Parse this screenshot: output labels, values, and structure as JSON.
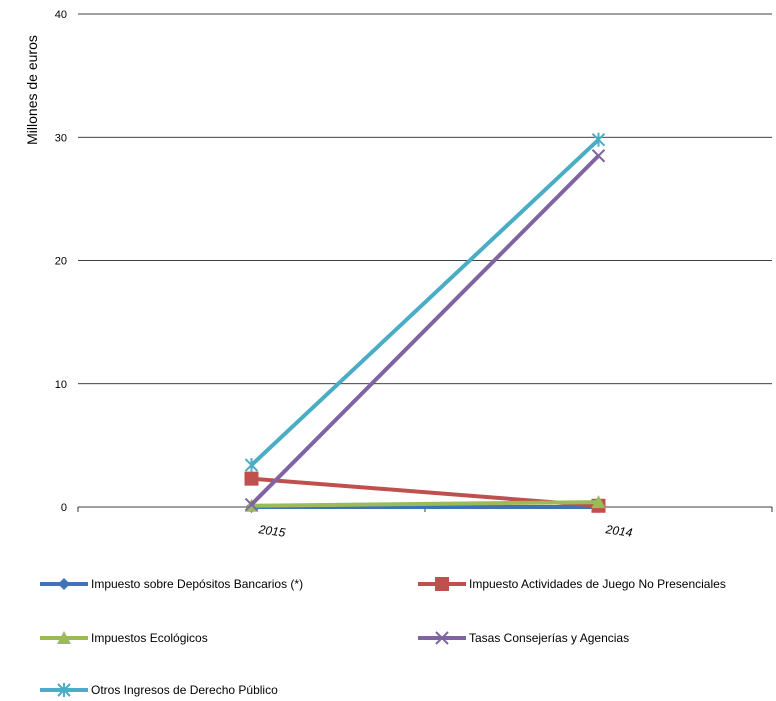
{
  "chart_data": {
    "type": "line",
    "title": "",
    "xlabel": "",
    "ylabel": "Millones de euros",
    "categories": [
      "2015",
      "2014"
    ],
    "ylim": [
      0,
      40
    ],
    "yticks": [
      0,
      10,
      20,
      30,
      40
    ],
    "grid": true,
    "legend_position": "bottom",
    "series": [
      {
        "name": "Impuesto sobre Depósitos Bancarios (*)",
        "values": [
          0,
          0
        ],
        "color": "#3E73B8",
        "marker": "diamond"
      },
      {
        "name": "Impuesto Actividades de Juego No Presenciales",
        "values": [
          2.3,
          0.1
        ],
        "color": "#C0504D",
        "marker": "square"
      },
      {
        "name": "Impuestos Ecológicos",
        "values": [
          0.1,
          0.4
        ],
        "color": "#9BBB59",
        "marker": "triangle"
      },
      {
        "name": "Tasas Consejerías y Agencias",
        "values": [
          0.2,
          28.5
        ],
        "color": "#8064A2",
        "marker": "x"
      },
      {
        "name": "Otros Ingresos de Derecho Público",
        "values": [
          3.4,
          29.8
        ],
        "color": "#4BACC6",
        "marker": "star"
      }
    ]
  }
}
